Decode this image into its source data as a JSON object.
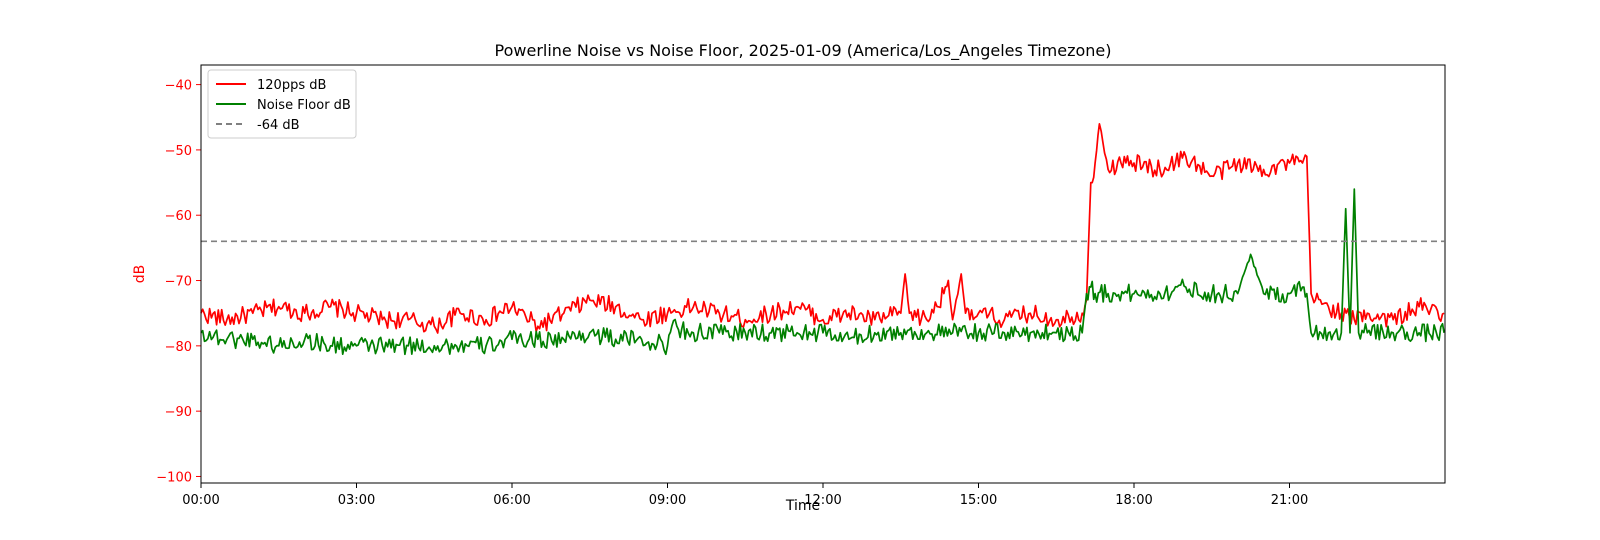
{
  "chart_data": {
    "type": "line",
    "title": "Powerline Noise vs Noise Floor, 2025-01-09 (America/Los_Angeles Timezone)",
    "xlabel": "Time",
    "ylabel": "dB",
    "xlim": [
      "00:00",
      "24:00"
    ],
    "ylim": [
      -101,
      -37
    ],
    "x_ticks": [
      "00:00",
      "03:00",
      "06:00",
      "09:00",
      "12:00",
      "15:00",
      "18:00",
      "21:00"
    ],
    "y_ticks": [
      -40,
      -50,
      -60,
      -70,
      -80,
      -90,
      -100
    ],
    "grid": false,
    "legend_position": "top-left",
    "colors": {
      "axis_accent": "#ff0000"
    },
    "series": [
      {
        "name": "120pps dB",
        "color": "#ff0000",
        "x": [
          "00:00",
          "00:30",
          "01:00",
          "01:30",
          "02:00",
          "02:30",
          "03:00",
          "03:30",
          "04:00",
          "04:30",
          "05:00",
          "05:30",
          "06:00",
          "06:30",
          "07:00",
          "07:30",
          "08:00",
          "08:30",
          "09:00",
          "09:30",
          "10:00",
          "10:30",
          "11:00",
          "11:30",
          "12:00",
          "12:30",
          "13:00",
          "13:30",
          "13:35",
          "13:40",
          "14:00",
          "14:20",
          "14:25",
          "14:30",
          "14:40",
          "14:45",
          "14:50",
          "15:00",
          "15:30",
          "16:00",
          "16:30",
          "17:00",
          "17:05",
          "17:10",
          "17:15",
          "17:20",
          "17:30",
          "17:45",
          "18:00",
          "18:30",
          "19:00",
          "19:30",
          "20:00",
          "20:30",
          "21:00",
          "21:15",
          "21:20",
          "21:25",
          "21:30",
          "21:45",
          "22:00",
          "22:15",
          "22:30",
          "23:00",
          "23:30",
          "23:59"
        ],
        "values": [
          -75,
          -76,
          -75,
          -74,
          -75,
          -74,
          -75,
          -76,
          -76,
          -77,
          -75,
          -76,
          -74,
          -77,
          -75,
          -73,
          -74,
          -76,
          -75,
          -74,
          -75,
          -76,
          -75,
          -74,
          -76,
          -75,
          -76,
          -75,
          -69,
          -75,
          -76,
          -72,
          -70,
          -76,
          -69,
          -75,
          -76,
          -75,
          -76,
          -75,
          -76,
          -75,
          -73,
          -55,
          -52,
          -46,
          -53,
          -52,
          -52,
          -53,
          -51,
          -54,
          -52,
          -53,
          -52,
          -52,
          -51,
          -72,
          -73,
          -74,
          -75,
          -76,
          -75,
          -76,
          -74,
          -75
        ]
      },
      {
        "name": "Noise Floor dB",
        "color": "#008000",
        "x": [
          "00:00",
          "00:30",
          "01:00",
          "01:30",
          "02:00",
          "02:30",
          "03:00",
          "03:30",
          "04:00",
          "04:30",
          "05:00",
          "05:30",
          "06:00",
          "06:30",
          "07:00",
          "07:30",
          "08:00",
          "08:30",
          "09:00",
          "09:05",
          "09:30",
          "10:00",
          "10:30",
          "11:00",
          "11:30",
          "12:00",
          "12:30",
          "13:00",
          "13:30",
          "14:00",
          "14:30",
          "15:00",
          "15:30",
          "16:00",
          "16:30",
          "17:00",
          "17:05",
          "17:10",
          "17:15",
          "17:30",
          "18:00",
          "18:30",
          "19:00",
          "19:30",
          "20:00",
          "20:15",
          "20:30",
          "21:00",
          "21:15",
          "21:20",
          "21:25",
          "21:45",
          "22:00",
          "22:05",
          "22:10",
          "22:15",
          "22:20",
          "22:30",
          "23:00",
          "23:30",
          "23:59"
        ],
        "values": [
          -78,
          -79,
          -79,
          -80,
          -79,
          -80,
          -80,
          -80,
          -80,
          -80,
          -80,
          -80,
          -79,
          -79,
          -79,
          -78,
          -79,
          -79,
          -80,
          -77,
          -78,
          -78,
          -78,
          -78,
          -78,
          -78,
          -79,
          -78,
          -78,
          -78,
          -78,
          -78,
          -78,
          -78,
          -78,
          -78,
          -72,
          -71,
          -72,
          -72,
          -72,
          -72,
          -71,
          -72,
          -72,
          -66,
          -72,
          -72,
          -71,
          -72,
          -78,
          -78,
          -78,
          -59,
          -78,
          -56,
          -78,
          -78,
          -78,
          -78,
          -78
        ]
      },
      {
        "name": "-64 dB",
        "color": "#808080",
        "dashed": true,
        "x": [
          "00:00",
          "23:59"
        ],
        "values": [
          -64,
          -64
        ]
      }
    ]
  }
}
